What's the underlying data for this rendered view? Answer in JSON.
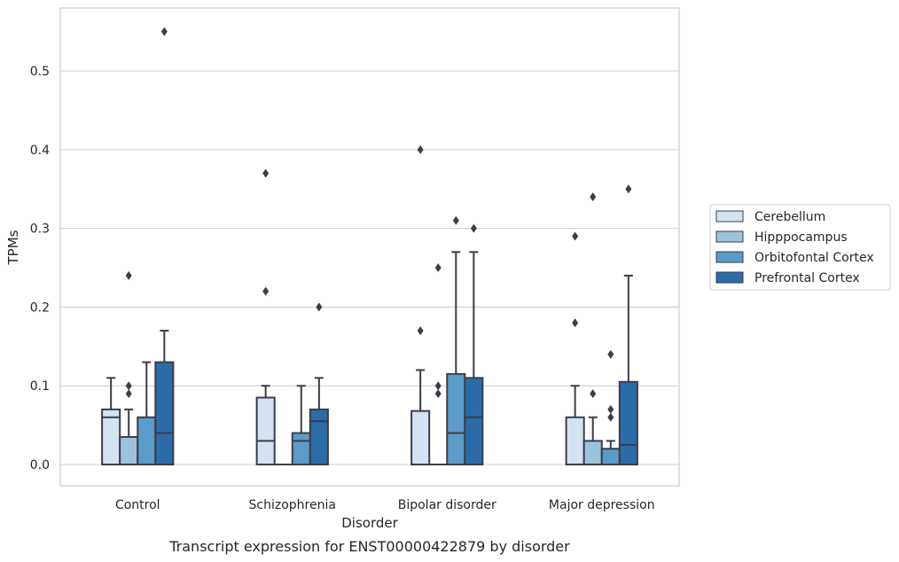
{
  "caption": "Transcript expression for ENST00000422879 by disorder",
  "chart_data": {
    "type": "box",
    "title": "",
    "xlabel": "Disorder",
    "ylabel": "TPMs",
    "ylim": [
      -0.027,
      0.58
    ],
    "yticks": [
      "0.0",
      "0.1",
      "0.2",
      "0.3",
      "0.4",
      "0.5"
    ],
    "grid": "horizontal",
    "legend_position": "right",
    "categories": [
      "Control",
      "Schizophrenia",
      "Bipolar disorder",
      "Major depression"
    ],
    "series": [
      {
        "name": "Cerebellum",
        "color": "#d4e3f1",
        "boxes": [
          {
            "q1": 0.0,
            "median": 0.06,
            "q3": 0.07,
            "whisker_low": 0.0,
            "whisker_high": 0.11,
            "outliers": []
          },
          {
            "q1": 0.0,
            "median": 0.03,
            "q3": 0.085,
            "whisker_low": 0.0,
            "whisker_high": 0.1,
            "outliers": [
              0.22,
              0.37
            ]
          },
          {
            "q1": 0.0,
            "median": 0.0,
            "q3": 0.068,
            "whisker_low": 0.0,
            "whisker_high": 0.12,
            "outliers": [
              0.17,
              0.4
            ]
          },
          {
            "q1": 0.0,
            "median": 0.0,
            "q3": 0.06,
            "whisker_low": 0.0,
            "whisker_high": 0.1,
            "outliers": [
              0.18,
              0.29
            ]
          }
        ]
      },
      {
        "name": "Hipppocampus",
        "color": "#9cc3de",
        "boxes": [
          {
            "q1": 0.0,
            "median": 0.0,
            "q3": 0.035,
            "whisker_low": 0.0,
            "whisker_high": 0.07,
            "outliers": [
              0.09,
              0.1,
              0.24
            ]
          },
          {
            "q1": 0.0,
            "median": 0.0,
            "q3": 0.0,
            "whisker_low": 0.0,
            "whisker_high": 0.0,
            "outliers": []
          },
          {
            "q1": 0.0,
            "median": 0.0,
            "q3": 0.0,
            "whisker_low": 0.0,
            "whisker_high": 0.0,
            "outliers": [
              0.09,
              0.1,
              0.25
            ]
          },
          {
            "q1": 0.0,
            "median": 0.0,
            "q3": 0.03,
            "whisker_low": 0.0,
            "whisker_high": 0.06,
            "outliers": [
              0.09,
              0.34
            ]
          }
        ]
      },
      {
        "name": "Orbitofontal Cortex",
        "color": "#5b9bc9",
        "boxes": [
          {
            "q1": 0.0,
            "median": 0.0,
            "q3": 0.06,
            "whisker_low": 0.0,
            "whisker_high": 0.13,
            "outliers": []
          },
          {
            "q1": 0.0,
            "median": 0.03,
            "q3": 0.04,
            "whisker_low": 0.0,
            "whisker_high": 0.1,
            "outliers": []
          },
          {
            "q1": 0.0,
            "median": 0.04,
            "q3": 0.115,
            "whisker_low": 0.0,
            "whisker_high": 0.27,
            "outliers": [
              0.31
            ]
          },
          {
            "q1": 0.0,
            "median": 0.0,
            "q3": 0.02,
            "whisker_low": 0.0,
            "whisker_high": 0.03,
            "outliers": [
              0.06,
              0.07,
              0.14
            ]
          }
        ]
      },
      {
        "name": "Prefrontal Cortex",
        "color": "#2b6ca8",
        "boxes": [
          {
            "q1": 0.0,
            "median": 0.04,
            "q3": 0.13,
            "whisker_low": 0.0,
            "whisker_high": 0.17,
            "outliers": [
              0.55
            ]
          },
          {
            "q1": 0.0,
            "median": 0.055,
            "q3": 0.07,
            "whisker_low": 0.0,
            "whisker_high": 0.11,
            "outliers": [
              0.2
            ]
          },
          {
            "q1": 0.0,
            "median": 0.06,
            "q3": 0.11,
            "whisker_low": 0.0,
            "whisker_high": 0.27,
            "outliers": [
              0.3
            ]
          },
          {
            "q1": 0.0,
            "median": 0.025,
            "q3": 0.105,
            "whisker_low": 0.0,
            "whisker_high": 0.24,
            "outliers": [
              0.35
            ]
          }
        ]
      }
    ]
  }
}
